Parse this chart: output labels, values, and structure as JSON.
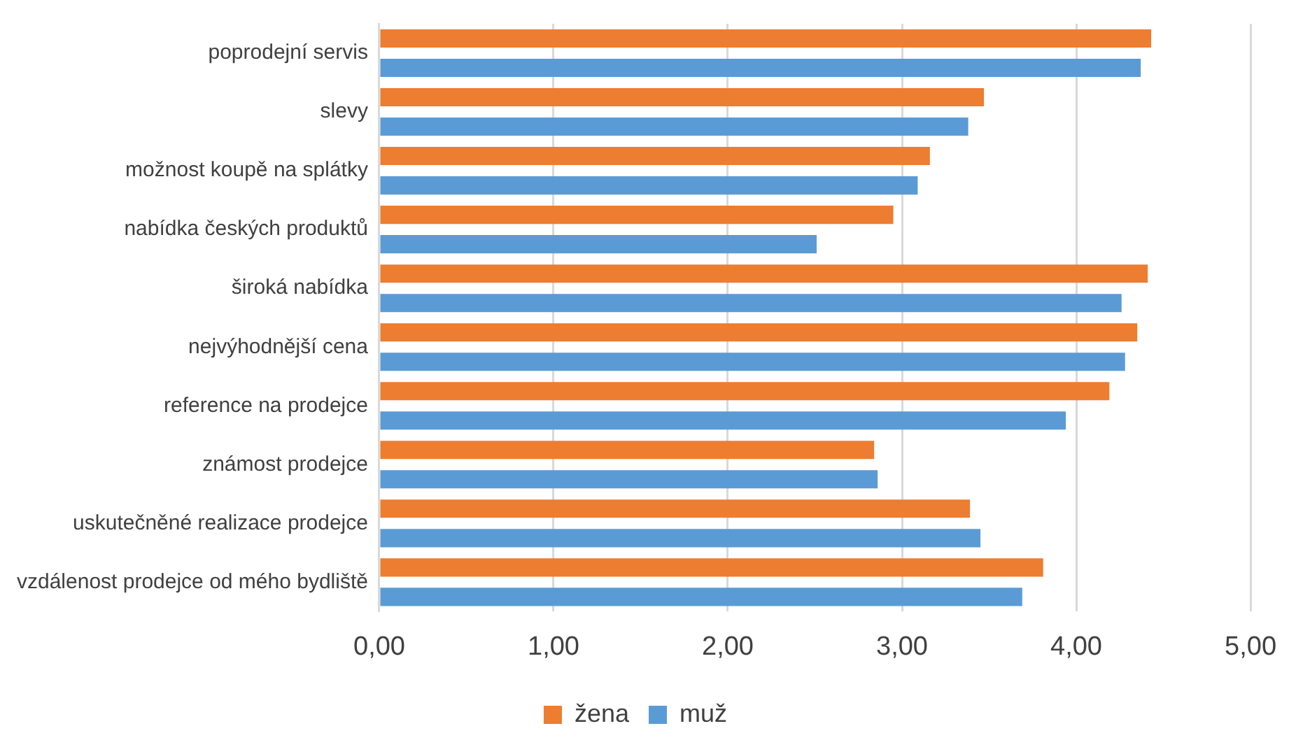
{
  "chart_data": {
    "type": "bar",
    "orientation": "horizontal",
    "categories": [
      "poprodejní servis",
      "slevy",
      "možnost koupě na splátky",
      "nabídka českých produktů",
      "široká nabídka",
      "nejvýhodnější cena",
      "reference na prodejce",
      "známost prodejce",
      "uskutečněné realizace prodejce",
      "vzdálenost prodejce od mého bydliště"
    ],
    "series": [
      {
        "name": "žena",
        "color": "#ed7d31",
        "values": [
          4.43,
          3.47,
          3.16,
          2.95,
          4.41,
          4.35,
          4.19,
          2.84,
          3.39,
          3.81
        ]
      },
      {
        "name": "muž",
        "color": "#5b9bd5",
        "values": [
          4.37,
          3.38,
          3.09,
          2.51,
          4.26,
          4.28,
          3.94,
          2.86,
          3.45,
          3.69
        ]
      }
    ],
    "xlim": [
      0,
      5
    ],
    "xticks": [
      {
        "value": 0,
        "label": "0,00"
      },
      {
        "value": 1,
        "label": "1,00"
      },
      {
        "value": 2,
        "label": "2,00"
      },
      {
        "value": 3,
        "label": "3,00"
      },
      {
        "value": 4,
        "label": "4,00"
      },
      {
        "value": 5,
        "label": "5,00"
      }
    ],
    "grid": "x",
    "legend": "bottom"
  }
}
